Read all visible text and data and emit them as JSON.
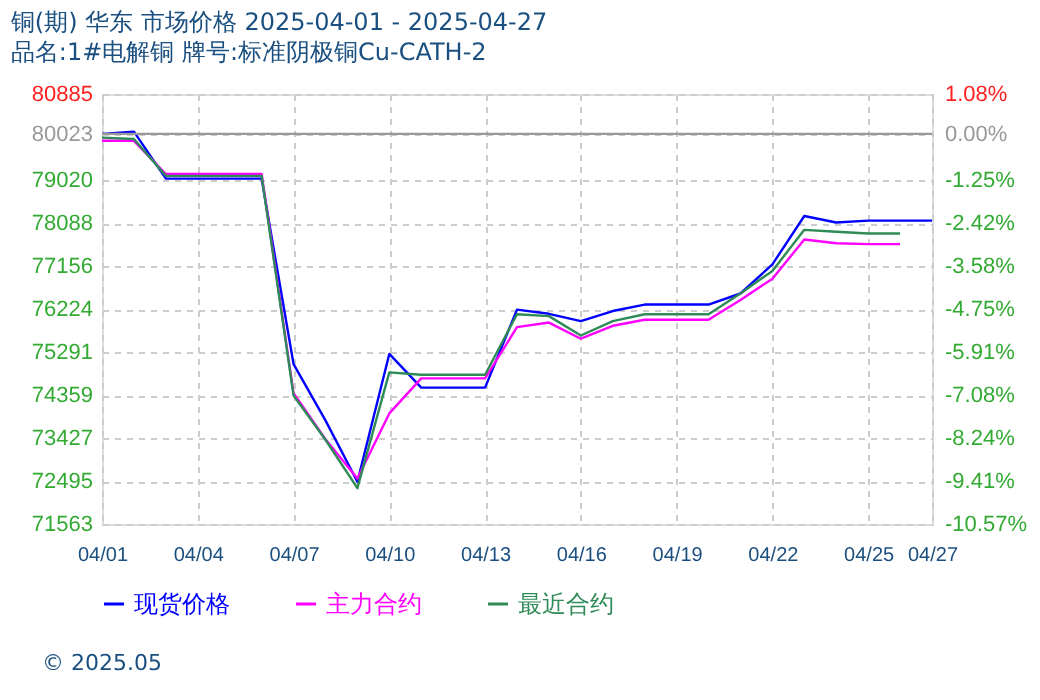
{
  "chart_data": {
    "type": "line",
    "title": "铜(期) 华东 市场价格 2025-04-01 - 2025-04-27",
    "subtitle": "品名:1#电解铜 牌号:标准阴极铜Cu-CATH-2",
    "x": [
      "2025-04-01",
      "2025-04-02",
      "2025-04-03",
      "2025-04-04",
      "2025-04-05",
      "2025-04-06",
      "2025-04-07",
      "2025-04-08",
      "2025-04-09",
      "2025-04-10",
      "2025-04-11",
      "2025-04-12",
      "2025-04-13",
      "2025-04-14",
      "2025-04-15",
      "2025-04-16",
      "2025-04-17",
      "2025-04-18",
      "2025-04-19",
      "2025-04-20",
      "2025-04-21",
      "2025-04-22",
      "2025-04-23",
      "2025-04-24",
      "2025-04-25",
      "2025-04-26",
      "2025-04-27"
    ],
    "series": [
      {
        "name": "现货价格",
        "color": "#0000ff",
        "values": [
          80020,
          80070,
          79050,
          79050,
          79050,
          79050,
          75030,
          73810,
          72480,
          75250,
          74520,
          74520,
          74520,
          76210,
          76120,
          75960,
          76180,
          76320,
          76320,
          76320,
          76560,
          77190,
          78240,
          78100,
          78140,
          78140,
          78140
        ]
      },
      {
        "name": "主力合约",
        "color": "#ff00ff",
        "values": [
          79870,
          79870,
          79150,
          79150,
          79150,
          79150,
          74400,
          73400,
          72550,
          73960,
          74720,
          74720,
          74720,
          75830,
          75930,
          75580,
          75860,
          75990,
          75990,
          75990,
          76420,
          76880,
          77730,
          77650,
          77630,
          77630,
          null
        ]
      },
      {
        "name": "最近合约",
        "color": "#2e8b57",
        "values": [
          79940,
          79910,
          79110,
          79110,
          79110,
          79110,
          74350,
          73390,
          72340,
          74850,
          74800,
          74800,
          74800,
          76110,
          76070,
          75650,
          75960,
          76110,
          76110,
          76110,
          76560,
          77050,
          77940,
          77900,
          77860,
          77860,
          null
        ]
      }
    ],
    "xlim": [
      "2025-04-01",
      "2025-04-27"
    ],
    "xticks": [
      {
        "value": "2025-04-01",
        "label": "04/01"
      },
      {
        "value": "2025-04-04",
        "label": "04/04"
      },
      {
        "value": "2025-04-07",
        "label": "04/07"
      },
      {
        "value": "2025-04-10",
        "label": "04/10"
      },
      {
        "value": "2025-04-13",
        "label": "04/13"
      },
      {
        "value": "2025-04-16",
        "label": "04/16"
      },
      {
        "value": "2025-04-19",
        "label": "04/19"
      },
      {
        "value": "2025-04-22",
        "label": "04/22"
      },
      {
        "value": "2025-04-25",
        "label": "04/25"
      },
      {
        "value": "2025-04-27",
        "label": "04/27"
      }
    ],
    "ylim": [
      71563,
      80885
    ],
    "yticks": [
      {
        "value": 80885,
        "label": "80885"
      },
      {
        "value": 80023,
        "label": "80023"
      },
      {
        "value": 79020,
        "label": "79020"
      },
      {
        "value": 78088,
        "label": "78088"
      },
      {
        "value": 77156,
        "label": "77156"
      },
      {
        "value": 76224,
        "label": "76224"
      },
      {
        "value": 75291,
        "label": "75291"
      },
      {
        "value": 74359,
        "label": "74359"
      },
      {
        "value": 73427,
        "label": "73427"
      },
      {
        "value": 72495,
        "label": "72495"
      },
      {
        "value": 71563,
        "label": "71563"
      }
    ],
    "y2lim": [
      -10.57,
      1.08
    ],
    "y2ticks": [
      {
        "value": 1.08,
        "label": "1.08%"
      },
      {
        "value": 0,
        "label": "0.00%"
      },
      {
        "value": -1.25,
        "label": "-1.25%"
      },
      {
        "value": -2.42,
        "label": "-2.42%"
      },
      {
        "value": -3.58,
        "label": "-3.58%"
      },
      {
        "value": -4.75,
        "label": "-4.75%"
      },
      {
        "value": -5.91,
        "label": "-5.91%"
      },
      {
        "value": -7.08,
        "label": "-7.08%"
      },
      {
        "value": -8.24,
        "label": "-8.24%"
      },
      {
        "value": -9.41,
        "label": "-9.41%"
      },
      {
        "value": -10.57,
        "label": "-10.57%"
      }
    ],
    "ref_lines": [
      {
        "axis": "y2",
        "value": 0,
        "color": "#999999"
      }
    ],
    "grid": true,
    "legend": "bottom",
    "marker": "none",
    "line_style": "solid",
    "annotations": [
      "© 2025.05"
    ]
  }
}
